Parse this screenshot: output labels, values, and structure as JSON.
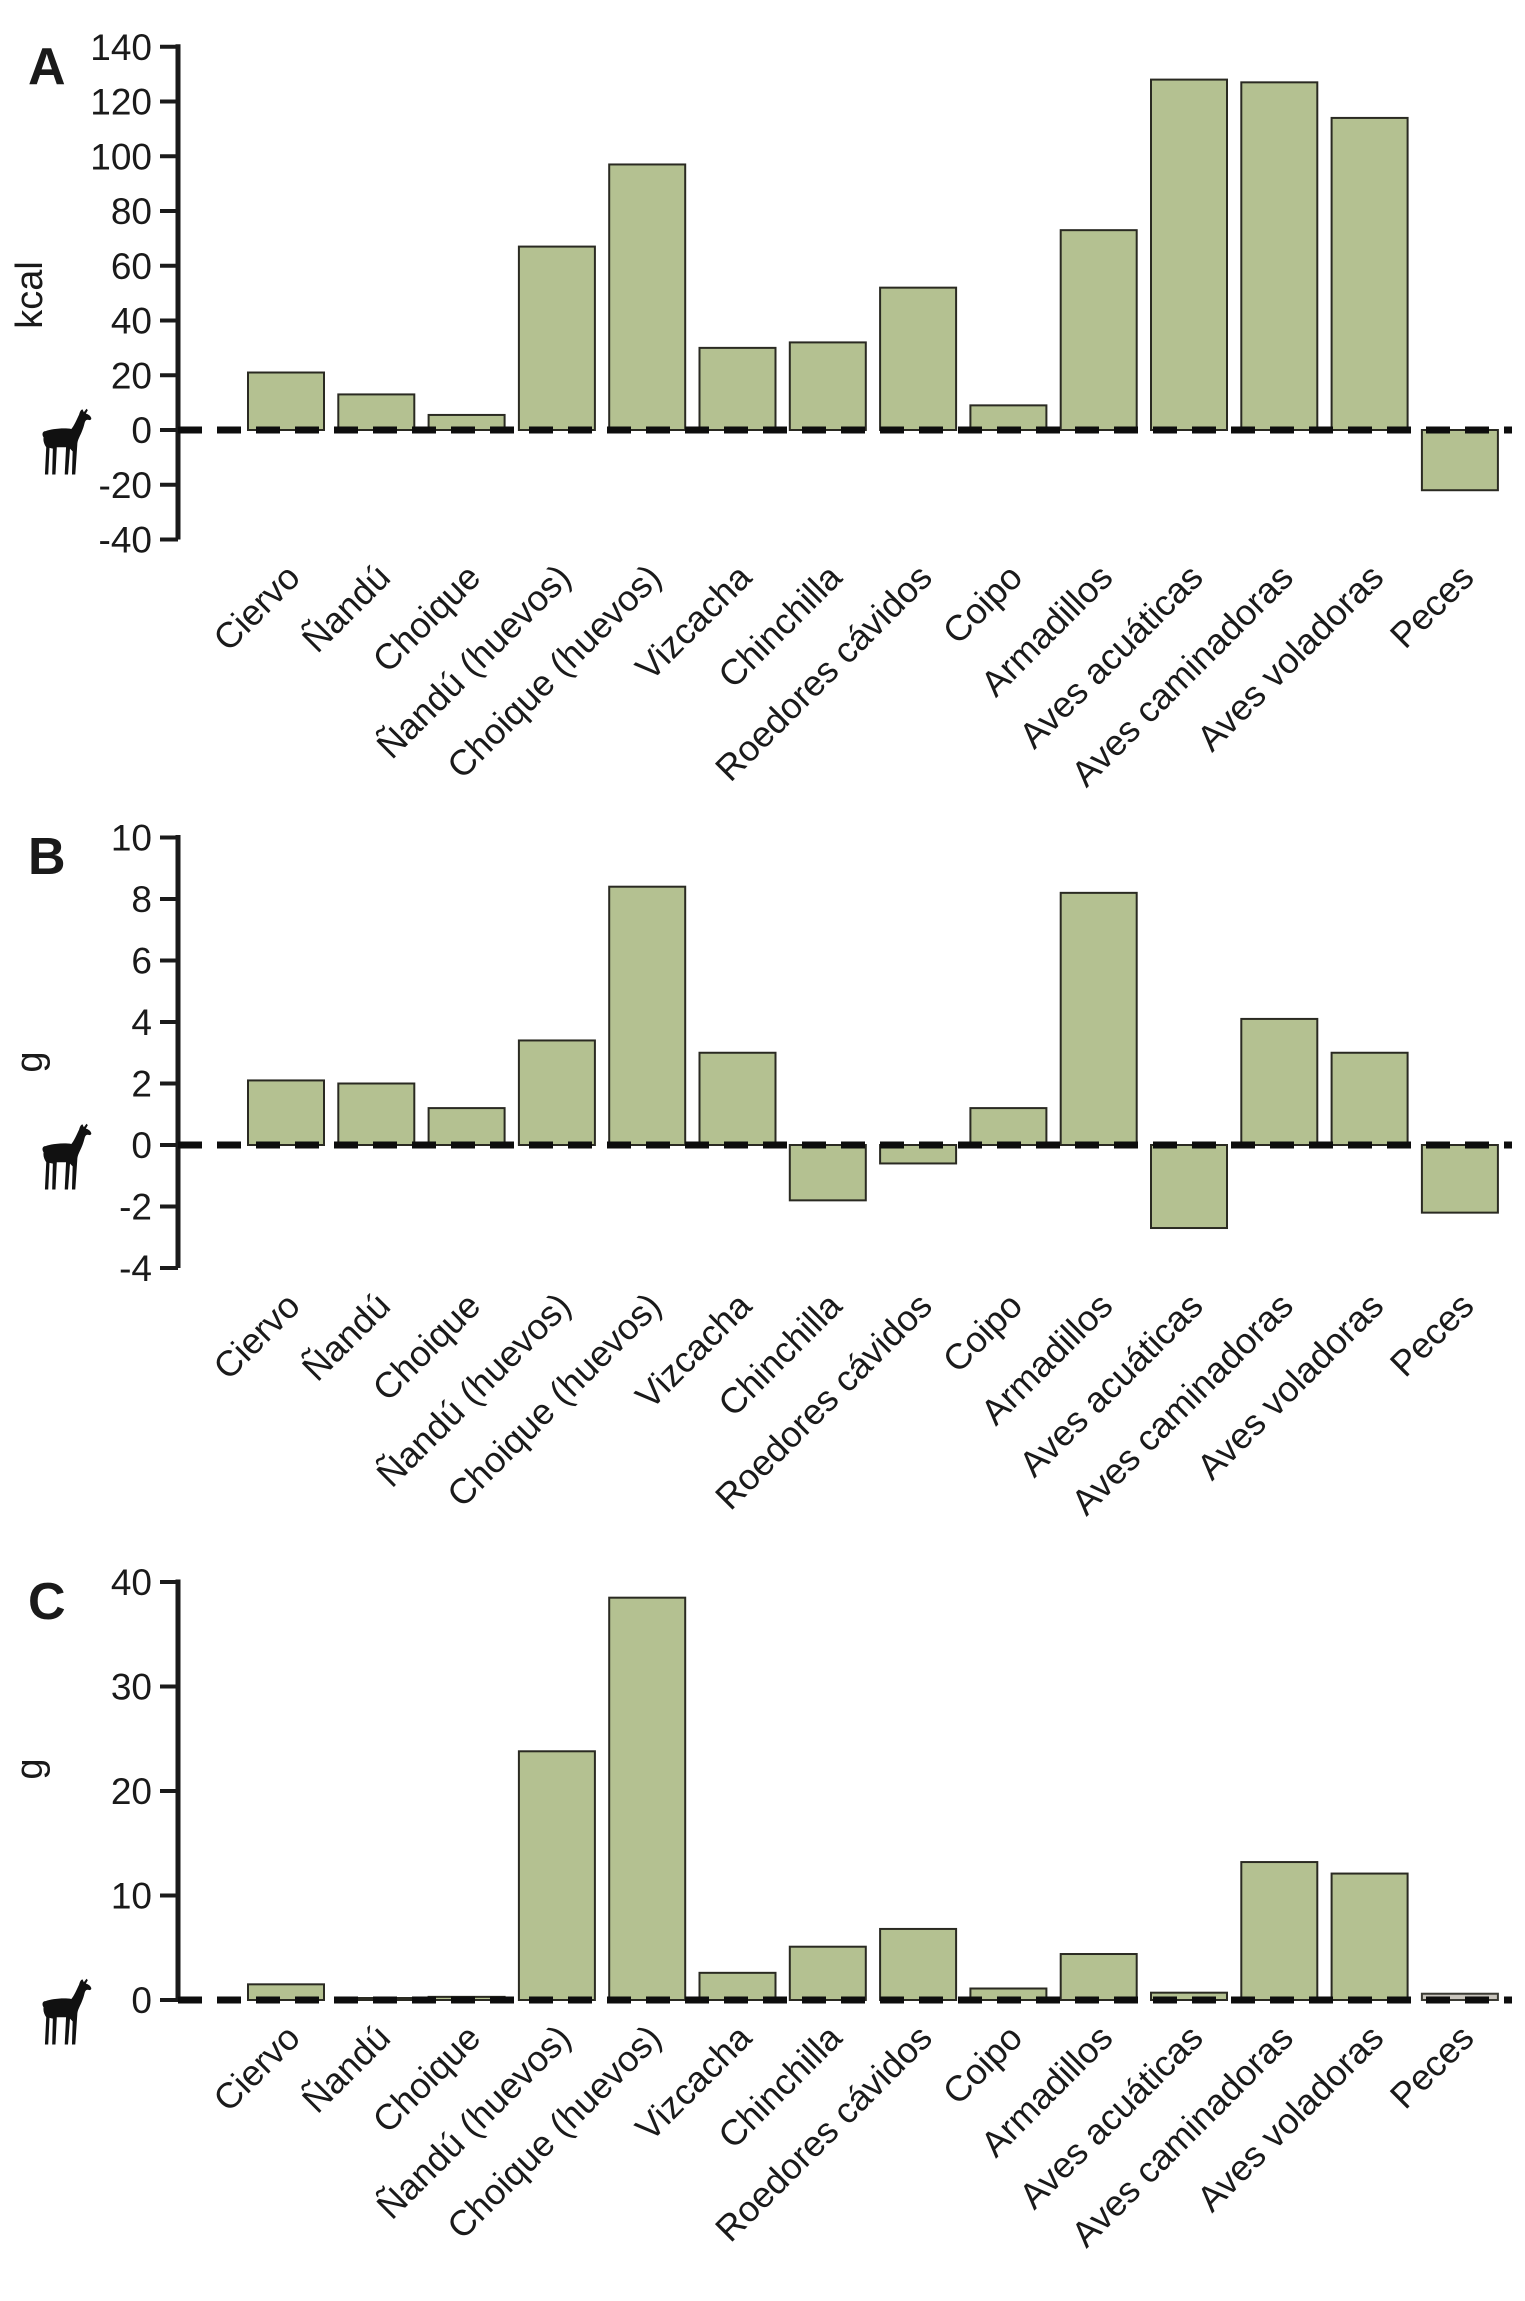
{
  "figure": {
    "description": "Three stacked bar chart panels comparing prey categories",
    "icon": "guanaco-silhouette-icon",
    "zero_line_style": "dashed",
    "colors": {
      "bar_fill": "#b4c191",
      "bar_stroke": "#2a2a22",
      "special_bar_fill": "#c9c5bd",
      "special_bar_stroke": "#3a3a33",
      "axis": "#1a1a1a",
      "dash_line": "#0d0d0d"
    }
  },
  "chart_data": {
    "type": "bar",
    "categories": [
      "Ciervo",
      "Ñandú",
      "Choique",
      "Ñandú (huevos)",
      "Choique (huevos)",
      "Vizcacha",
      "Chinchilla",
      "Roedores cávidos",
      "Coipo",
      "Armadillos",
      "Aves acuáticas",
      "Aves caminadoras",
      "Aves voladoras",
      "Peces"
    ],
    "grid": false,
    "legend": "none",
    "panels": [
      {
        "letter": "A",
        "ylabel": "kcal",
        "ylim": [
          -40,
          140
        ],
        "ytick_step": 20,
        "yticks": [
          140,
          120,
          100,
          80,
          60,
          40,
          20,
          0,
          -20,
          -40
        ],
        "values": [
          21,
          13,
          5.5,
          67,
          97,
          30,
          32,
          52,
          9,
          73,
          128,
          127,
          114,
          -22
        ]
      },
      {
        "letter": "B",
        "ylabel": "g",
        "ylim": [
          -4,
          10
        ],
        "ytick_step": 2,
        "yticks": [
          10,
          8,
          6,
          4,
          2,
          0,
          -2,
          -4
        ],
        "values": [
          2.1,
          2.0,
          1.2,
          3.4,
          8.4,
          3.0,
          -1.8,
          -0.6,
          1.2,
          8.2,
          -2.7,
          4.1,
          3.0,
          -2.2
        ]
      },
      {
        "letter": "C",
        "ylabel": "g",
        "ylim": [
          0,
          40
        ],
        "ytick_step": 10,
        "yticks": [
          40,
          30,
          20,
          10,
          0
        ],
        "values": [
          1.5,
          0.15,
          0.3,
          23.8,
          38.5,
          2.6,
          5.1,
          6.8,
          1.1,
          4.4,
          0.7,
          13.2,
          12.1,
          0.6
        ],
        "special_bars": [
          {
            "index": 13,
            "fill": "#c9c5bd",
            "stroke": "#3a3a33"
          }
        ]
      }
    ]
  }
}
